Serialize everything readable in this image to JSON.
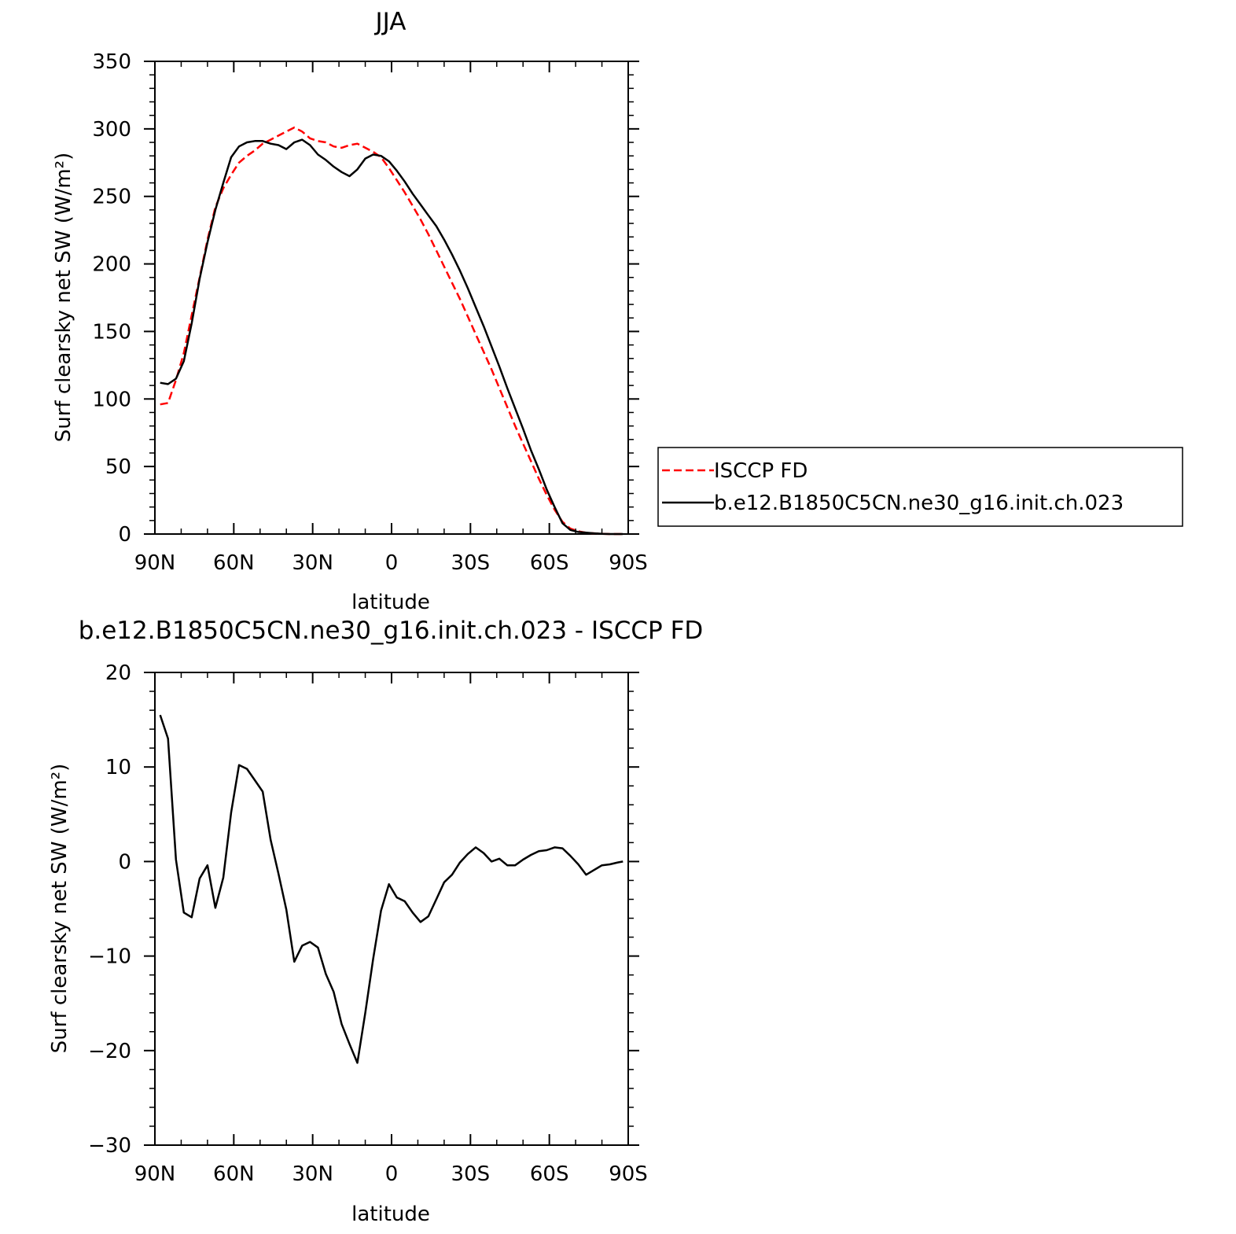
{
  "colors": {
    "obs": "#ff0000",
    "model": "#000000"
  },
  "chart_data": [
    {
      "type": "line",
      "title": "JJA",
      "xlabel": "latitude",
      "ylabel": "Surf clearsky net SW (W/m²)",
      "xlim": [
        90,
        -90
      ],
      "ylim": [
        0,
        350
      ],
      "xticks": [
        {
          "value": 90,
          "label": "90N"
        },
        {
          "value": 60,
          "label": "60N"
        },
        {
          "value": 30,
          "label": "30N"
        },
        {
          "value": 0,
          "label": "0"
        },
        {
          "value": -30,
          "label": "30S"
        },
        {
          "value": -60,
          "label": "60S"
        },
        {
          "value": -90,
          "label": "90S"
        }
      ],
      "yticks": [
        {
          "value": 0,
          "label": "0"
        },
        {
          "value": 50,
          "label": "50"
        },
        {
          "value": 100,
          "label": "100"
        },
        {
          "value": 150,
          "label": "150"
        },
        {
          "value": 200,
          "label": "200"
        },
        {
          "value": 250,
          "label": "250"
        },
        {
          "value": 300,
          "label": "300"
        },
        {
          "value": 350,
          "label": "350"
        }
      ],
      "legend": {
        "placement": "right",
        "entries": [
          {
            "name": "ISCCP FD",
            "style": "dashed",
            "color": "#ff0000"
          },
          {
            "name": "b.e12.B1850C5CN.ne30_g16.init.ch.023",
            "style": "solid",
            "color": "#000000"
          }
        ]
      },
      "series": [
        {
          "name": "ISCCP FD",
          "style": "dashed",
          "color": "#ff0000",
          "x": [
            88,
            85,
            82,
            79,
            76,
            73,
            70,
            67,
            64,
            61,
            58,
            55,
            52,
            49,
            46,
            43,
            40,
            37,
            34,
            31,
            28,
            25,
            22,
            19,
            16,
            13,
            10,
            7,
            4,
            1,
            -2,
            -5,
            -8,
            -11,
            -14,
            -17,
            -20,
            -23,
            -26,
            -29,
            -32,
            -35,
            -38,
            -41,
            -44,
            -47,
            -50,
            -53,
            -56,
            -59,
            -62,
            -65,
            -68,
            -71,
            -74,
            -77,
            -80,
            -83,
            -86,
            -88
          ],
          "y": [
            96,
            97,
            114,
            134,
            162,
            190,
            218,
            242,
            256,
            266,
            275,
            280,
            284,
            289,
            292,
            295,
            298,
            301,
            298,
            293,
            291,
            290,
            287,
            286,
            288,
            289,
            286,
            283,
            279,
            271,
            262,
            253,
            243,
            233,
            222,
            210,
            198,
            186,
            174,
            161,
            148,
            135,
            122,
            108,
            94,
            80,
            67,
            54,
            41,
            29,
            18,
            9,
            4,
            2,
            1,
            0.5,
            0.2,
            0,
            0,
            0
          ]
        },
        {
          "name": "b.e12.B1850C5CN.ne30_g16.init.ch.023",
          "style": "solid",
          "color": "#000000",
          "x": [
            88,
            85,
            82,
            79,
            76,
            73,
            70,
            67,
            64,
            61,
            58,
            55,
            52,
            49,
            46,
            43,
            40,
            37,
            34,
            31,
            28,
            25,
            22,
            19,
            16,
            13,
            10,
            7,
            4,
            1,
            -2,
            -5,
            -8,
            -11,
            -14,
            -17,
            -20,
            -23,
            -26,
            -29,
            -32,
            -35,
            -38,
            -41,
            -44,
            -47,
            -50,
            -53,
            -56,
            -59,
            -62,
            -65,
            -68,
            -71,
            -74,
            -77,
            -80,
            -83,
            -86,
            -88
          ],
          "y": [
            112,
            111,
            115,
            128,
            156,
            189,
            216,
            240,
            260,
            279,
            287,
            290,
            291,
            291,
            289,
            288,
            285,
            290,
            292,
            288,
            281,
            277,
            272,
            268,
            265,
            270,
            278,
            281,
            280,
            276,
            269,
            261,
            252,
            244,
            236,
            228,
            218,
            207,
            195,
            182,
            168,
            154,
            139,
            124,
            108,
            93,
            78,
            62,
            48,
            33,
            20,
            8,
            3,
            1.5,
            1,
            0.5,
            0.2,
            0,
            0,
            0
          ]
        }
      ]
    },
    {
      "type": "line",
      "title": "b.e12.B1850C5CN.ne30_g16.init.ch.023 - ISCCP FD",
      "xlabel": "latitude",
      "ylabel": "Surf clearsky net SW (W/m²)",
      "xlim": [
        90,
        -90
      ],
      "ylim": [
        -30,
        20
      ],
      "xticks": [
        {
          "value": 90,
          "label": "90N"
        },
        {
          "value": 60,
          "label": "60N"
        },
        {
          "value": 30,
          "label": "30N"
        },
        {
          "value": 0,
          "label": "0"
        },
        {
          "value": -30,
          "label": "30S"
        },
        {
          "value": -60,
          "label": "60S"
        },
        {
          "value": -90,
          "label": "90S"
        }
      ],
      "yticks": [
        {
          "value": -30,
          "label": "−30"
        },
        {
          "value": -20,
          "label": "−20"
        },
        {
          "value": -10,
          "label": "−10"
        },
        {
          "value": 0,
          "label": "0"
        },
        {
          "value": 10,
          "label": "10"
        },
        {
          "value": 20,
          "label": "20"
        }
      ],
      "series": [
        {
          "name": "",
          "style": "solid",
          "color": "#000000",
          "x": [
            88,
            85,
            82,
            79,
            76,
            73,
            70,
            67,
            64,
            61,
            58,
            55,
            52,
            49,
            46,
            43,
            40,
            37,
            34,
            31,
            28,
            25,
            22,
            19,
            16,
            13,
            10,
            7,
            4,
            1,
            -2,
            -5,
            -8,
            -11,
            -14,
            -17,
            -20,
            -23,
            -26,
            -29,
            -32,
            -35,
            -38,
            -41,
            -44,
            -47,
            -50,
            -53,
            -56,
            -59,
            -62,
            -65,
            -68,
            -71,
            -74,
            -77,
            -80,
            -83,
            -86,
            -88
          ],
          "y": [
            15.5,
            13.0,
            0.2,
            -5.4,
            -5.9,
            -1.8,
            -0.4,
            -4.9,
            -1.7,
            5.2,
            10.2,
            9.8,
            8.6,
            7.4,
            2.3,
            -1.3,
            -5.1,
            -10.6,
            -8.9,
            -8.5,
            -9.1,
            -11.9,
            -13.8,
            -17.2,
            -19.3,
            -21.3,
            -16.0,
            -10.3,
            -5.2,
            -2.4,
            -3.8,
            -4.2,
            -5.4,
            -6.4,
            -5.8,
            -4.0,
            -2.2,
            -1.4,
            -0.1,
            0.8,
            1.5,
            0.9,
            0.0,
            0.3,
            -0.4,
            -0.4,
            0.2,
            0.7,
            1.1,
            1.2,
            1.5,
            1.4,
            0.6,
            -0.3,
            -1.4,
            -0.9,
            -0.4,
            -0.3,
            -0.1,
            0.0
          ]
        }
      ]
    }
  ]
}
